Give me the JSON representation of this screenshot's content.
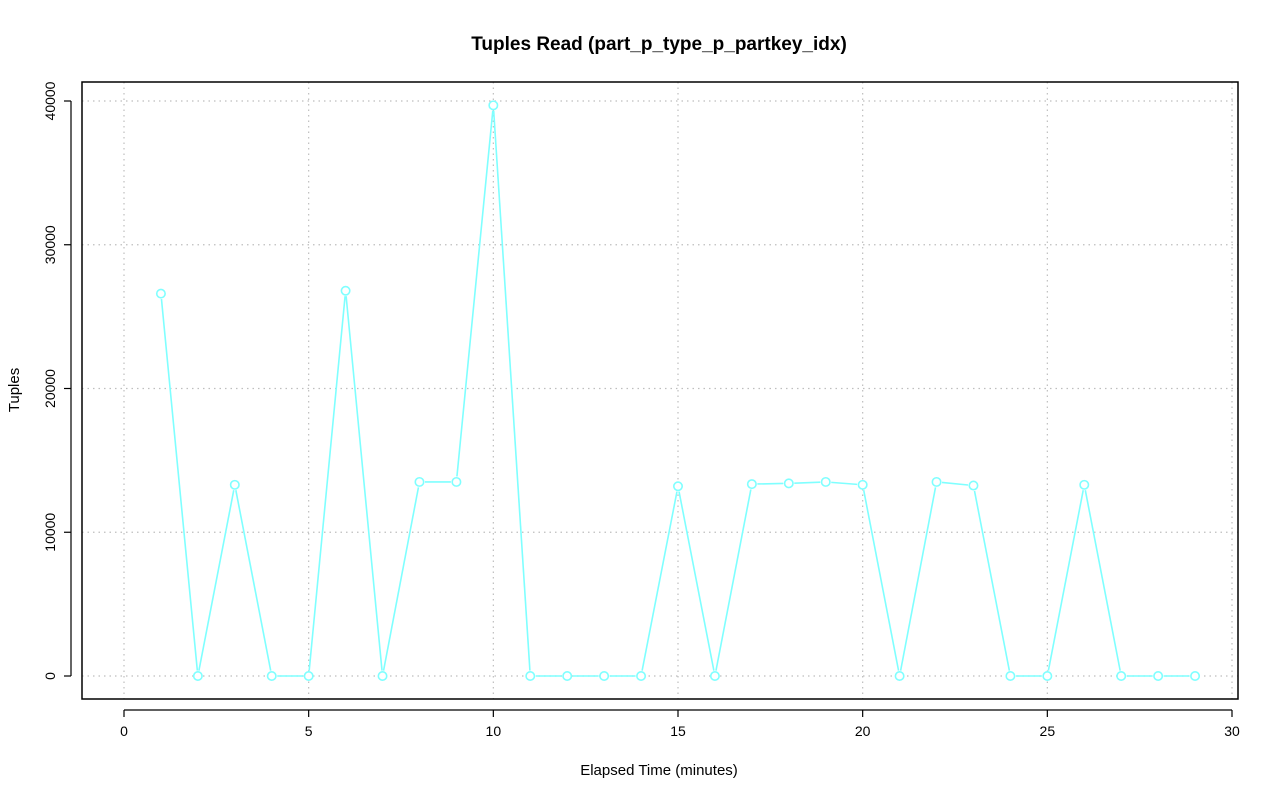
{
  "chart_data": {
    "type": "line",
    "title": "Tuples Read (part_p_type_p_partkey_idx)",
    "xlabel": "Elapsed Time (minutes)",
    "ylabel": "Tuples",
    "xlim": [
      0,
      30
    ],
    "ylim": [
      0,
      40000
    ],
    "xticks": [
      0,
      5,
      10,
      15,
      20,
      25,
      30
    ],
    "yticks": [
      0,
      10000,
      20000,
      30000,
      40000
    ],
    "grid": true,
    "series": [
      {
        "color": "#7fffff",
        "x": [
          1,
          2,
          3,
          4,
          5,
          6,
          7,
          8,
          9,
          10,
          11,
          12,
          13,
          14,
          15,
          16,
          17,
          18,
          19,
          20,
          21,
          22,
          23,
          24,
          25,
          26,
          27,
          28,
          29
        ],
        "values": [
          26600,
          0,
          13300,
          0,
          0,
          26800,
          0,
          13500,
          13500,
          39700,
          0,
          0,
          0,
          0,
          13200,
          0,
          13350,
          13400,
          13500,
          13300,
          0,
          13500,
          13250,
          0,
          0,
          13300,
          0,
          0,
          0
        ]
      }
    ]
  }
}
